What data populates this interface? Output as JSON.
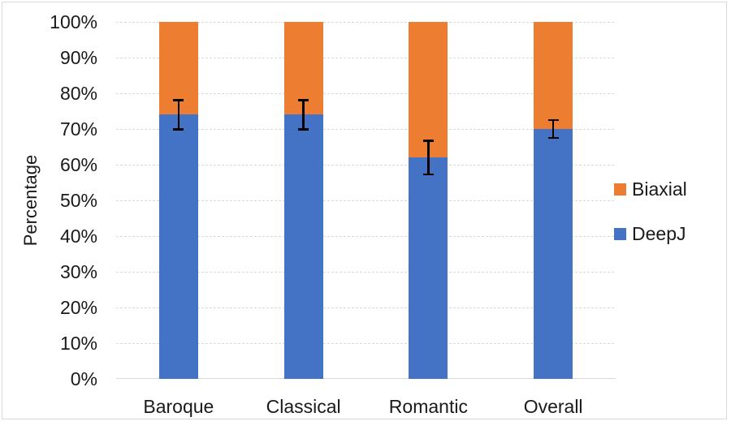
{
  "chart_data": {
    "type": "bar",
    "stacked": true,
    "title": "",
    "xlabel": "",
    "ylabel": "Percentage",
    "categories": [
      "Baroque",
      "Classical",
      "Romantic",
      "Overall"
    ],
    "series": [
      {
        "name": "DeepJ",
        "color": "#4472C4",
        "values": [
          74,
          74,
          62,
          70
        ]
      },
      {
        "name": "Biaxial",
        "color": "#ED7D31",
        "values": [
          26,
          26,
          38,
          30
        ]
      }
    ],
    "error_bars": {
      "on_series": "DeepJ",
      "plus_minus": [
        4.4,
        4.4,
        5.0,
        2.8
      ],
      "color": "#000000"
    },
    "y_ticks": [
      "0%",
      "10%",
      "20%",
      "30%",
      "40%",
      "50%",
      "60%",
      "70%",
      "80%",
      "90%",
      "100%"
    ],
    "ylim": [
      0,
      100
    ],
    "grid": true,
    "legend": {
      "position": "right",
      "items": [
        {
          "label": "Biaxial",
          "color": "#ED7D31"
        },
        {
          "label": "DeepJ",
          "color": "#4472C4"
        }
      ]
    }
  },
  "colors": {
    "gridline": "#d9d9d9",
    "axis_line": "#d9d9d9",
    "frame_border": "#d9d9d9",
    "background": "#ffffff",
    "text": "#1a1a1a",
    "error_bar": "#000000"
  }
}
